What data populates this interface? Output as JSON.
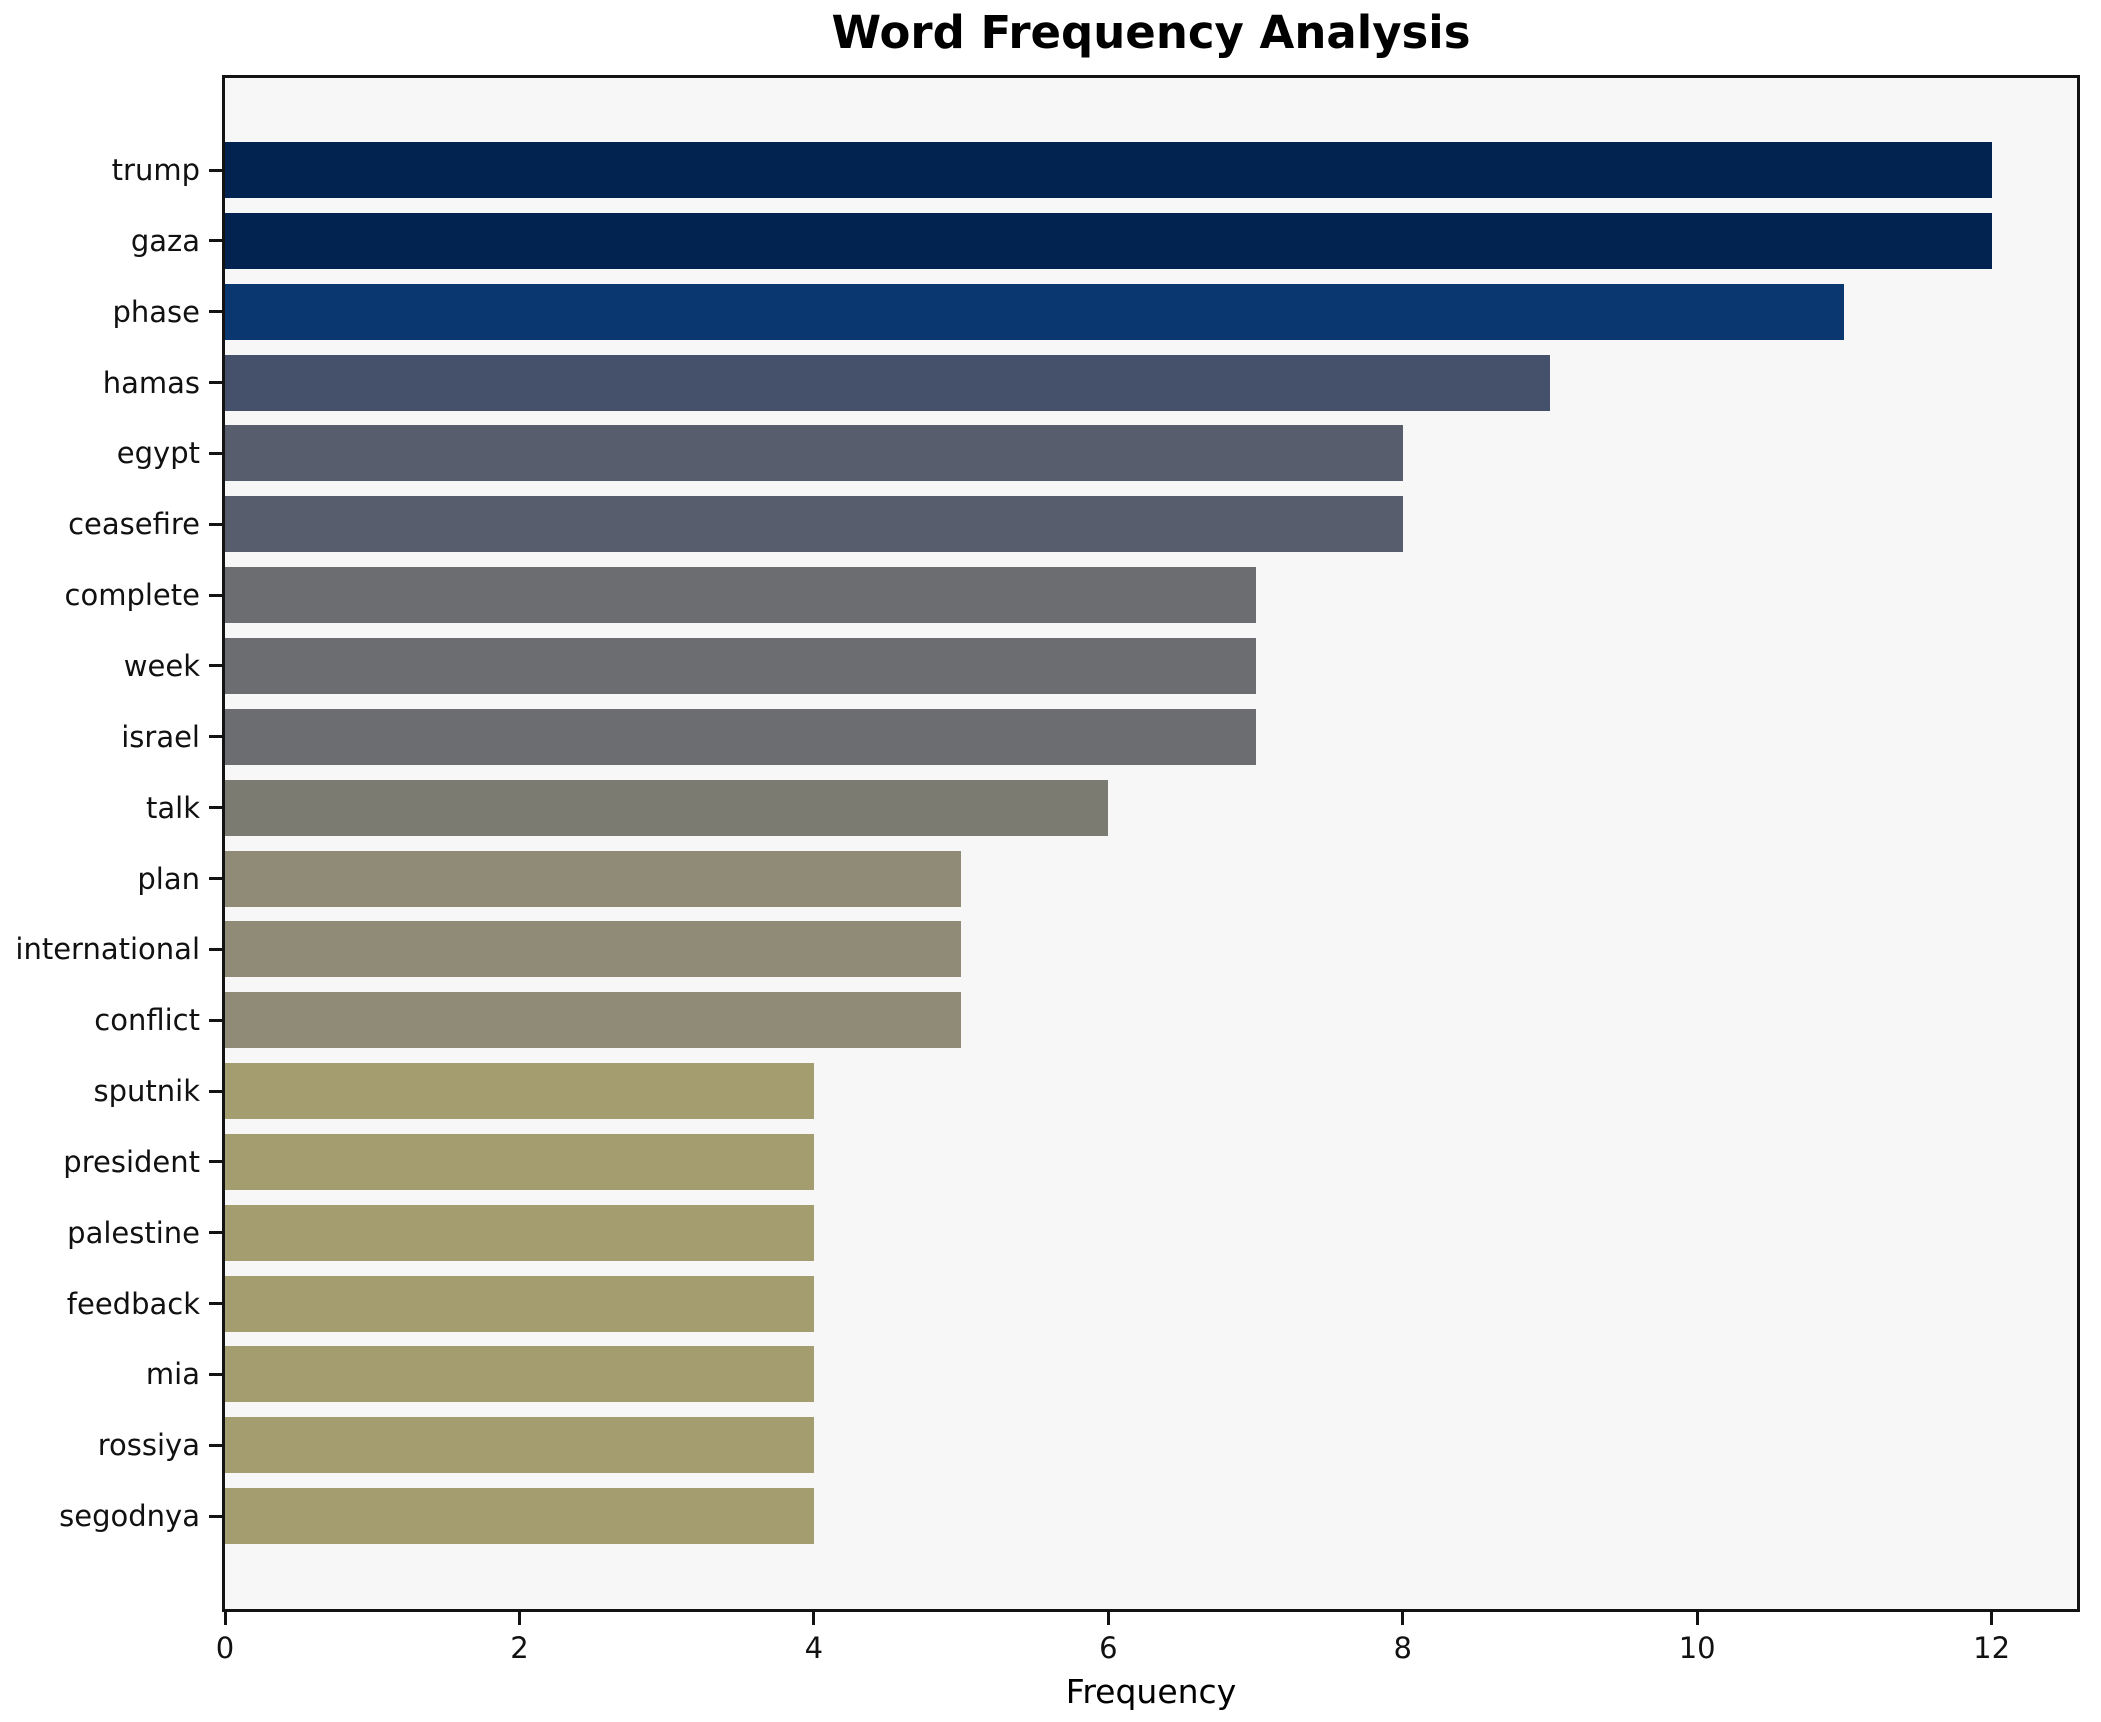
{
  "title": "Word Frequency Analysis",
  "colors": {
    "figure_bg": "#ffffff",
    "plot_bg": "#f7f7f8",
    "spine": "#131313",
    "text": "#111111"
  },
  "chart_data": {
    "type": "bar",
    "orientation": "horizontal",
    "title": "Word Frequency Analysis",
    "xlabel": "Frequency",
    "ylabel": "",
    "grid": false,
    "legend": null,
    "categories": [
      "trump",
      "gaza",
      "phase",
      "hamas",
      "egypt",
      "ceasefire",
      "complete",
      "week",
      "israel",
      "talk",
      "plan",
      "international",
      "conflict",
      "sputnik",
      "president",
      "palestine",
      "feedback",
      "mia",
      "rossiya",
      "segodnya"
    ],
    "values": [
      12,
      12,
      11,
      9,
      8,
      8,
      7,
      7,
      7,
      6,
      5,
      5,
      5,
      4,
      4,
      4,
      4,
      4,
      4,
      4
    ],
    "bar_colors": [
      "#022350",
      "#022350",
      "#0a3770",
      "#45506b",
      "#575d6c",
      "#575d6c",
      "#6c6d71",
      "#6c6d71",
      "#6c6d71",
      "#7b7b72",
      "#908b77",
      "#908b77",
      "#908b77",
      "#a49d70",
      "#a49d70",
      "#a49d70",
      "#a49d70",
      "#a49d70",
      "#a49d70",
      "#a49d70"
    ],
    "xlim": [
      0,
      12.58
    ],
    "xticks": [
      0,
      2,
      4,
      6,
      8,
      10,
      12
    ]
  }
}
